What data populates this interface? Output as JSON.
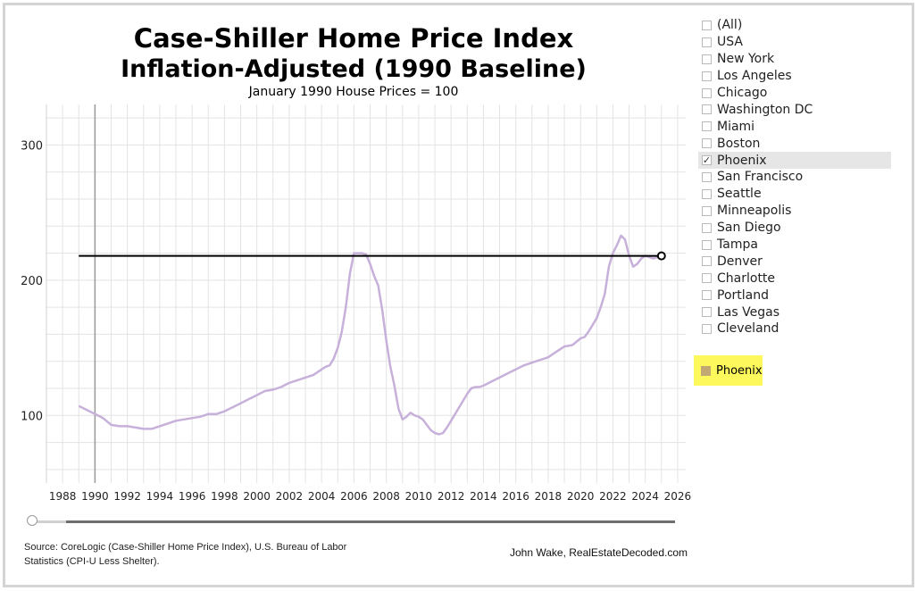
{
  "header": {
    "title_line1": "Case-Shiller Home Price Index",
    "title_line2": "Inflation-Adjusted (1990 Baseline)",
    "subtitle": "January 1990 House Prices = 100"
  },
  "filter": {
    "items": [
      {
        "label": "(All)",
        "checked": false
      },
      {
        "label": "USA",
        "checked": false
      },
      {
        "label": "New York",
        "checked": false
      },
      {
        "label": "Los Angeles",
        "checked": false
      },
      {
        "label": "Chicago",
        "checked": false
      },
      {
        "label": "Washington DC",
        "checked": false
      },
      {
        "label": "Miami",
        "checked": false
      },
      {
        "label": "Boston",
        "checked": false
      },
      {
        "label": "Phoenix",
        "checked": true
      },
      {
        "label": "San Francisco",
        "checked": false
      },
      {
        "label": "Seattle",
        "checked": false
      },
      {
        "label": "Minneapolis",
        "checked": false
      },
      {
        "label": "San Diego",
        "checked": false
      },
      {
        "label": "Tampa",
        "checked": false
      },
      {
        "label": "Denver",
        "checked": false
      },
      {
        "label": "Charlotte",
        "checked": false
      },
      {
        "label": "Portland",
        "checked": false
      },
      {
        "label": "Las Vegas",
        "checked": false
      },
      {
        "label": "Cleveland",
        "checked": false
      }
    ]
  },
  "legend": {
    "label": "Phoenix",
    "color": "#c2a873"
  },
  "footer": {
    "source": "Source: CoreLogic (Case-Shiller Home Price Index), U.S. Bureau of Labor Statistics (CPI-U Less Shelter).",
    "credit": "John Wake, RealEstateDecoded.com"
  },
  "colors": {
    "series": "#c7b0da",
    "reference_line": "#000000",
    "grid": "#e3e3e3",
    "axis": "#9a9a9a"
  },
  "chart_data": {
    "type": "line",
    "title": "Case-Shiller Home Price Index",
    "subtitle": "January 1990 House Prices = 100",
    "xlim": [
      1987,
      2026.5
    ],
    "ylim": [
      50,
      330
    ],
    "x_ticks": [
      1988,
      1990,
      1992,
      1994,
      1996,
      1998,
      2000,
      2002,
      2004,
      2006,
      2008,
      2010,
      2012,
      2014,
      2016,
      2018,
      2020,
      2022,
      2024,
      2026
    ],
    "y_ticks": [
      100,
      200,
      300
    ],
    "grid": true,
    "baseline_x": 1990,
    "series": [
      {
        "name": "Phoenix",
        "x": [
          1989.0,
          1989.5,
          1990.0,
          1990.5,
          1991.0,
          1991.5,
          1992.0,
          1992.5,
          1993.0,
          1993.5,
          1994.0,
          1994.5,
          1995.0,
          1995.5,
          1996.0,
          1996.5,
          1997.0,
          1997.5,
          1998.0,
          1998.5,
          1999.0,
          1999.5,
          2000.0,
          2000.5,
          2001.0,
          2001.5,
          2002.0,
          2002.5,
          2003.0,
          2003.5,
          2004.0,
          2004.25,
          2004.5,
          2004.75,
          2005.0,
          2005.25,
          2005.5,
          2005.75,
          2006.0,
          2006.25,
          2006.5,
          2006.75,
          2007.0,
          2007.25,
          2007.5,
          2007.75,
          2008.0,
          2008.25,
          2008.5,
          2008.75,
          2009.0,
          2009.25,
          2009.5,
          2009.75,
          2010.0,
          2010.25,
          2010.5,
          2010.75,
          2011.0,
          2011.25,
          2011.5,
          2011.75,
          2012.0,
          2012.25,
          2012.5,
          2012.75,
          2013.0,
          2013.25,
          2013.5,
          2013.75,
          2014.0,
          2014.5,
          2015.0,
          2015.5,
          2016.0,
          2016.5,
          2017.0,
          2017.5,
          2018.0,
          2018.5,
          2019.0,
          2019.5,
          2020.0,
          2020.25,
          2020.5,
          2020.75,
          2021.0,
          2021.25,
          2021.5,
          2021.75,
          2022.0,
          2022.25,
          2022.5,
          2022.75,
          2023.0,
          2023.25,
          2023.5,
          2023.75,
          2024.0,
          2024.25,
          2024.5,
          2024.75,
          2025.0
        ],
        "values": [
          107,
          104,
          101,
          98,
          93,
          92,
          92,
          91,
          90,
          90,
          92,
          94,
          96,
          97,
          98,
          99,
          101,
          101,
          103,
          106,
          109,
          112,
          115,
          118,
          119,
          121,
          124,
          126,
          128,
          130,
          134,
          136,
          137,
          142,
          150,
          162,
          180,
          205,
          220,
          220,
          220,
          219,
          212,
          203,
          196,
          178,
          155,
          136,
          122,
          105,
          97,
          99,
          102,
          100,
          99,
          97,
          93,
          89,
          87,
          86,
          87,
          91,
          96,
          101,
          106,
          111,
          116,
          120,
          121,
          121,
          122,
          125,
          128,
          131,
          134,
          137,
          139,
          141,
          143,
          147,
          151,
          152,
          157,
          158,
          162,
          167,
          172,
          180,
          190,
          210,
          220,
          226,
          233,
          230,
          218,
          210,
          212,
          216,
          218,
          217,
          216,
          217,
          217
        ]
      }
    ],
    "reference_line": {
      "value": 218,
      "x_start": 1989.0,
      "x_end": 2025.0
    }
  }
}
